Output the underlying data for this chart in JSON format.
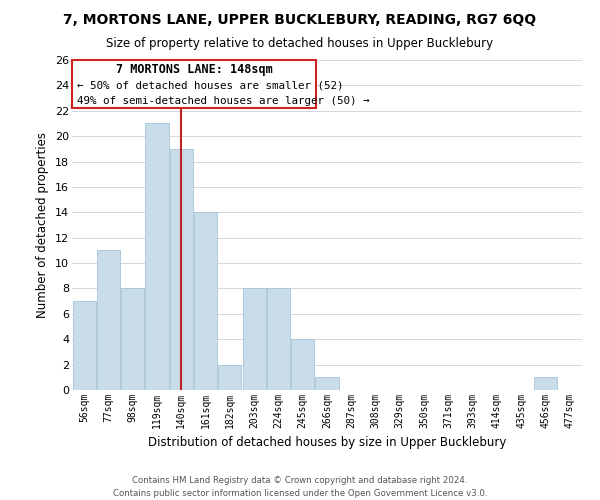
{
  "title": "7, MORTONS LANE, UPPER BUCKLEBURY, READING, RG7 6QQ",
  "subtitle": "Size of property relative to detached houses in Upper Bucklebury",
  "xlabel": "Distribution of detached houses by size in Upper Bucklebury",
  "ylabel": "Number of detached properties",
  "bin_labels": [
    "56sqm",
    "77sqm",
    "98sqm",
    "119sqm",
    "140sqm",
    "161sqm",
    "182sqm",
    "203sqm",
    "224sqm",
    "245sqm",
    "266sqm",
    "287sqm",
    "308sqm",
    "329sqm",
    "350sqm",
    "371sqm",
    "393sqm",
    "414sqm",
    "435sqm",
    "456sqm",
    "477sqm"
  ],
  "bar_heights": [
    7,
    11,
    8,
    21,
    19,
    14,
    2,
    8,
    8,
    4,
    1,
    0,
    0,
    0,
    0,
    0,
    0,
    0,
    0,
    1,
    0
  ],
  "bar_color": "#c9dcea",
  "bar_edge_color": "#a8c4d8",
  "vline_x_index": 4,
  "vline_color": "#bb2222",
  "annotation_title": "7 MORTONS LANE: 148sqm",
  "annotation_line1": "← 50% of detached houses are smaller (52)",
  "annotation_line2": "49% of semi-detached houses are larger (50) →",
  "annotation_box_color": "#ffffff",
  "annotation_box_edgecolor": "#cc2222",
  "ylim": [
    0,
    26
  ],
  "yticks": [
    0,
    2,
    4,
    6,
    8,
    10,
    12,
    14,
    16,
    18,
    20,
    22,
    24,
    26
  ],
  "footer1": "Contains HM Land Registry data © Crown copyright and database right 2024.",
  "footer2": "Contains public sector information licensed under the Open Government Licence v3.0.",
  "background_color": "#ffffff",
  "grid_color": "#d0d8e0"
}
